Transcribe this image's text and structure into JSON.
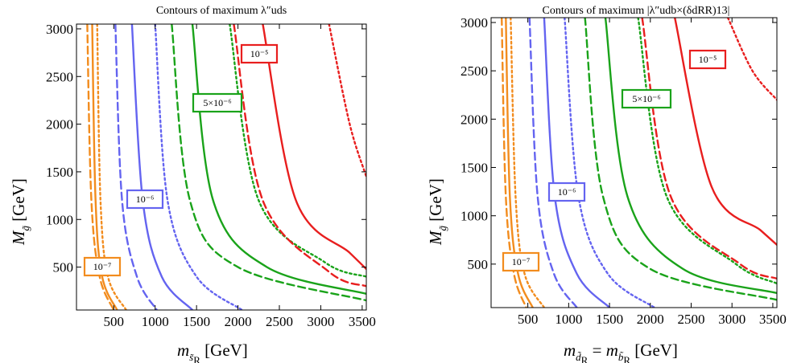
{
  "chart_data": [
    {
      "type": "line",
      "title": "Contours of maximum λ″uds",
      "xlabel": "m s̃R [GeV]",
      "ylabel": "M g̃ [GeV]",
      "xlim": [
        50,
        3550
      ],
      "ylim": [
        50,
        3050
      ],
      "xticks": [
        500,
        1000,
        1500,
        2000,
        2500,
        3000,
        3500
      ],
      "yticks": [
        500,
        1000,
        1500,
        2000,
        2500,
        3000
      ],
      "grid": false,
      "labels": [
        {
          "text": "10⁻⁷",
          "color": "#F28C1E"
        },
        {
          "text": "10⁻⁶",
          "color": "#6464F0"
        },
        {
          "text": "5×10⁻⁶",
          "color": "#1AA31A"
        },
        {
          "text": "10⁻⁵",
          "color": "#E81E1E"
        }
      ],
      "series": [
        {
          "color": "#F28C1E",
          "style": "dashed",
          "points": [
            [
              180,
              3050
            ],
            [
              230,
              1200
            ],
            [
              330,
              400
            ],
            [
              500,
              50
            ]
          ]
        },
        {
          "color": "#F28C1E",
          "style": "solid",
          "points": [
            [
              240,
              3050
            ],
            [
              280,
              1200
            ],
            [
              360,
              400
            ],
            [
              540,
              50
            ]
          ]
        },
        {
          "color": "#F28C1E",
          "style": "dotted",
          "points": [
            [
              300,
              3050
            ],
            [
              340,
              1200
            ],
            [
              430,
              400
            ],
            [
              650,
              50
            ]
          ]
        },
        {
          "color": "#6464F0",
          "style": "dashed",
          "points": [
            [
              520,
              3050
            ],
            [
              600,
              1200
            ],
            [
              780,
              400
            ],
            [
              1020,
              50
            ]
          ]
        },
        {
          "color": "#6464F0",
          "style": "solid",
          "points": [
            [
              720,
              3050
            ],
            [
              850,
              1200
            ],
            [
              1080,
              400
            ],
            [
              1450,
              50
            ]
          ]
        },
        {
          "color": "#6464F0",
          "style": "dotted",
          "points": [
            [
              1000,
              3050
            ],
            [
              1150,
              1200
            ],
            [
              1500,
              400
            ],
            [
              2050,
              50
            ]
          ]
        },
        {
          "color": "#1AA31A",
          "style": "dashed",
          "points": [
            [
              1200,
              3050
            ],
            [
              1420,
              1200
            ],
            [
              2000,
              500
            ],
            [
              3550,
              150
            ]
          ]
        },
        {
          "color": "#1AA31A",
          "style": "solid",
          "points": [
            [
              1450,
              3050
            ],
            [
              1700,
              1200
            ],
            [
              2350,
              500
            ],
            [
              3550,
              220
            ]
          ]
        },
        {
          "color": "#1AA31A",
          "style": "dotted",
          "points": [
            [
              1900,
              3050
            ],
            [
              2250,
              1200
            ],
            [
              3050,
              550
            ],
            [
              3550,
              400
            ]
          ]
        },
        {
          "color": "#E81E1E",
          "style": "dashed",
          "points": [
            [
              1950,
              3050
            ],
            [
              2300,
              1200
            ],
            [
              3100,
              450
            ],
            [
              3550,
              300
            ]
          ]
        },
        {
          "color": "#E81E1E",
          "style": "solid",
          "points": [
            [
              2300,
              3050
            ],
            [
              2700,
              1200
            ],
            [
              3350,
              650
            ],
            [
              3550,
              480
            ]
          ]
        },
        {
          "color": "#E81E1E",
          "style": "dotted",
          "points": [
            [
              3100,
              3050
            ],
            [
              3350,
              2000
            ],
            [
              3550,
              1450
            ]
          ]
        }
      ]
    },
    {
      "type": "line",
      "title": "Contours of maximum |λ″udb×(δdRR)13|",
      "xlabel": "m d̃R = m b̃R [GeV]",
      "ylabel": "M g̃ [GeV]",
      "xlim": [
        50,
        3550
      ],
      "ylim": [
        50,
        3050
      ],
      "xticks": [
        500,
        1000,
        1500,
        2000,
        2500,
        3000,
        3500
      ],
      "yticks": [
        500,
        1000,
        1500,
        2000,
        2500,
        3000
      ],
      "grid": false,
      "labels": [
        {
          "text": "10⁻⁷",
          "color": "#F28C1E"
        },
        {
          "text": "10⁻⁶",
          "color": "#6464F0"
        },
        {
          "text": "5×10⁻⁶",
          "color": "#1AA31A"
        },
        {
          "text": "10⁻⁵",
          "color": "#E81E1E"
        }
      ],
      "series": [
        {
          "color": "#F28C1E",
          "style": "dashed",
          "points": [
            [
              180,
              3050
            ],
            [
              230,
              1200
            ],
            [
              330,
              400
            ],
            [
              480,
              50
            ]
          ]
        },
        {
          "color": "#F28C1E",
          "style": "solid",
          "points": [
            [
              230,
              3050
            ],
            [
              280,
              1200
            ],
            [
              380,
              400
            ],
            [
              560,
              50
            ]
          ]
        },
        {
          "color": "#F28C1E",
          "style": "dotted",
          "points": [
            [
              290,
              3050
            ],
            [
              350,
              1200
            ],
            [
              460,
              400
            ],
            [
              700,
              50
            ]
          ]
        },
        {
          "color": "#6464F0",
          "style": "dashed",
          "points": [
            [
              520,
              3050
            ],
            [
              620,
              1200
            ],
            [
              820,
              400
            ],
            [
              1100,
              50
            ]
          ]
        },
        {
          "color": "#6464F0",
          "style": "solid",
          "points": [
            [
              700,
              3050
            ],
            [
              830,
              1200
            ],
            [
              1100,
              400
            ],
            [
              1500,
              50
            ]
          ]
        },
        {
          "color": "#6464F0",
          "style": "dotted",
          "points": [
            [
              950,
              3050
            ],
            [
              1120,
              1200
            ],
            [
              1480,
              400
            ],
            [
              2050,
              50
            ]
          ]
        },
        {
          "color": "#1AA31A",
          "style": "dashed",
          "points": [
            [
              1200,
              3050
            ],
            [
              1420,
              1200
            ],
            [
              2000,
              450
            ],
            [
              3550,
              130
            ]
          ]
        },
        {
          "color": "#1AA31A",
          "style": "solid",
          "points": [
            [
              1450,
              3050
            ],
            [
              1720,
              1200
            ],
            [
              2400,
              450
            ],
            [
              3550,
              200
            ]
          ]
        },
        {
          "color": "#1AA31A",
          "style": "dotted",
          "points": [
            [
              1850,
              3050
            ],
            [
              2200,
              1200
            ],
            [
              3050,
              500
            ],
            [
              3550,
              300
            ]
          ]
        },
        {
          "color": "#E81E1E",
          "style": "dashed",
          "points": [
            [
              1900,
              3050
            ],
            [
              2250,
              1200
            ],
            [
              3100,
              500
            ],
            [
              3550,
              350
            ]
          ]
        },
        {
          "color": "#E81E1E",
          "style": "solid",
          "points": [
            [
              2300,
              3050
            ],
            [
              2750,
              1300
            ],
            [
              3350,
              850
            ],
            [
              3550,
              700
            ]
          ]
        },
        {
          "color": "#E81E1E",
          "style": "dotted",
          "points": [
            [
              2950,
              3050
            ],
            [
              3250,
              2500
            ],
            [
              3550,
              2200
            ]
          ]
        }
      ]
    }
  ]
}
